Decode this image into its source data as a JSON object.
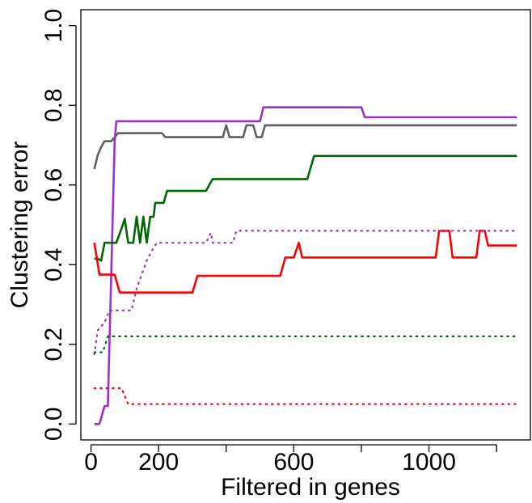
{
  "chart_data": {
    "type": "line",
    "title": "",
    "xlabel": "Filtered in genes",
    "ylabel": "Clustering error",
    "xlim": [
      -30,
      1300
    ],
    "ylim": [
      -0.04,
      1.04
    ],
    "x_ticks": [
      0,
      200,
      400,
      600,
      800,
      1000,
      1200
    ],
    "x_tick_labels": [
      "0",
      "200",
      "",
      "600",
      "",
      "1000",
      ""
    ],
    "y_ticks": [
      0.0,
      0.2,
      0.4,
      0.6,
      0.8,
      1.0
    ],
    "y_tick_labels": [
      "0.0",
      "0.2",
      "0.4",
      "0.6",
      "0.8",
      "1.0"
    ],
    "grid": false,
    "legend": "none",
    "series": [
      {
        "color": "#5f5f5f",
        "style": "solid",
        "points": [
          [
            10,
            0.64
          ],
          [
            20,
            0.675
          ],
          [
            30,
            0.695
          ],
          [
            40,
            0.71
          ],
          [
            60,
            0.71
          ],
          [
            80,
            0.73
          ],
          [
            210,
            0.73
          ],
          [
            220,
            0.72
          ],
          [
            390,
            0.72
          ],
          [
            400,
            0.75
          ],
          [
            410,
            0.72
          ],
          [
            450,
            0.72
          ],
          [
            460,
            0.75
          ],
          [
            480,
            0.75
          ],
          [
            490,
            0.72
          ],
          [
            505,
            0.72
          ],
          [
            515,
            0.75
          ],
          [
            1260,
            0.75
          ]
        ]
      },
      {
        "color": "#9932cc",
        "style": "solid",
        "points": [
          [
            10,
            0.0
          ],
          [
            25,
            0.0
          ],
          [
            40,
            0.045
          ],
          [
            50,
            0.045
          ],
          [
            70,
            0.71
          ],
          [
            75,
            0.76
          ],
          [
            500,
            0.76
          ],
          [
            510,
            0.795
          ],
          [
            800,
            0.795
          ],
          [
            810,
            0.77
          ],
          [
            1260,
            0.77
          ]
        ]
      },
      {
        "color": "#006400",
        "style": "solid",
        "points": [
          [
            10,
            0.415
          ],
          [
            20,
            0.415
          ],
          [
            30,
            0.41
          ],
          [
            40,
            0.455
          ],
          [
            75,
            0.455
          ],
          [
            90,
            0.49
          ],
          [
            100,
            0.515
          ],
          [
            110,
            0.455
          ],
          [
            125,
            0.455
          ],
          [
            135,
            0.52
          ],
          [
            145,
            0.455
          ],
          [
            155,
            0.52
          ],
          [
            165,
            0.455
          ],
          [
            175,
            0.52
          ],
          [
            185,
            0.52
          ],
          [
            190,
            0.555
          ],
          [
            200,
            0.555
          ],
          [
            215,
            0.555
          ],
          [
            225,
            0.585
          ],
          [
            340,
            0.585
          ],
          [
            360,
            0.615
          ],
          [
            640,
            0.615
          ],
          [
            660,
            0.673
          ],
          [
            1260,
            0.673
          ]
        ]
      },
      {
        "color": "#ff0000",
        "style": "solid",
        "points": [
          [
            10,
            0.455
          ],
          [
            25,
            0.375
          ],
          [
            70,
            0.375
          ],
          [
            85,
            0.33
          ],
          [
            300,
            0.33
          ],
          [
            315,
            0.372
          ],
          [
            560,
            0.372
          ],
          [
            575,
            0.418
          ],
          [
            600,
            0.418
          ],
          [
            615,
            0.455
          ],
          [
            625,
            0.418
          ],
          [
            1020,
            0.418
          ],
          [
            1030,
            0.485
          ],
          [
            1060,
            0.485
          ],
          [
            1070,
            0.418
          ],
          [
            1140,
            0.418
          ],
          [
            1150,
            0.485
          ],
          [
            1165,
            0.485
          ],
          [
            1175,
            0.448
          ],
          [
            1260,
            0.448
          ]
        ]
      },
      {
        "color": "#9932cc",
        "style": "dotted",
        "points": [
          [
            10,
            0.175
          ],
          [
            20,
            0.235
          ],
          [
            40,
            0.255
          ],
          [
            55,
            0.285
          ],
          [
            120,
            0.285
          ],
          [
            135,
            0.34
          ],
          [
            150,
            0.375
          ],
          [
            165,
            0.41
          ],
          [
            180,
            0.435
          ],
          [
            195,
            0.455
          ],
          [
            340,
            0.455
          ],
          [
            355,
            0.48
          ],
          [
            360,
            0.455
          ],
          [
            420,
            0.455
          ],
          [
            430,
            0.485
          ],
          [
            1260,
            0.485
          ]
        ]
      },
      {
        "color": "#006400",
        "style": "dotted",
        "points": [
          [
            10,
            0.18
          ],
          [
            35,
            0.18
          ],
          [
            50,
            0.22
          ],
          [
            1260,
            0.22
          ]
        ]
      },
      {
        "color": "#ff0000",
        "style": "dotted",
        "points": [
          [
            10,
            0.09
          ],
          [
            90,
            0.09
          ],
          [
            110,
            0.05
          ],
          [
            1260,
            0.05
          ]
        ]
      }
    ]
  }
}
